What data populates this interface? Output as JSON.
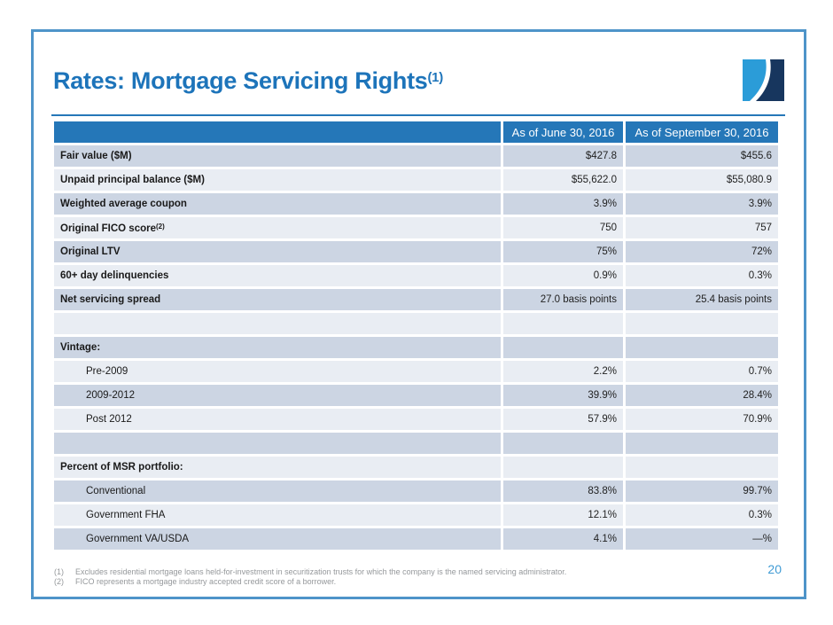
{
  "colors": {
    "title_blue": "#1d74ba",
    "header_blue": "#2577b8",
    "row_dark": "#ccd5e3",
    "row_light": "#e9edf3",
    "frame_border": "#4e94c9",
    "page_number_blue": "#3f9bd5",
    "footnote_gray": "#95989b",
    "logo_light_blue": "#2b9cd8",
    "logo_navy": "#17365e"
  },
  "slide": {
    "title": "Rates: Mortgage Servicing Rights",
    "title_superscript": "(1)",
    "page_number": "20",
    "footnotes": [
      {
        "marker": "(1)",
        "text": "Excludes residential mortgage loans held-for-investment in securitization trusts for which the company is the named servicing administrator."
      },
      {
        "marker": "(2)",
        "text": "FICO represents a mortgage industry accepted credit score of a borrower."
      }
    ]
  },
  "table": {
    "columns": [
      "",
      "As of June 30, 2016",
      "As of September 30, 2016"
    ],
    "rows": [
      {
        "type": "metric",
        "label": "Fair value ($M)",
        "sup": "",
        "jun": "$427.8",
        "sep": "$455.6"
      },
      {
        "type": "metric",
        "label": "Unpaid principal balance ($M)",
        "sup": "",
        "jun": "$55,622.0",
        "sep": "$55,080.9"
      },
      {
        "type": "metric",
        "label": "Weighted average coupon",
        "sup": "",
        "jun": "3.9%",
        "sep": "3.9%"
      },
      {
        "type": "metric",
        "label": "Original FICO score",
        "sup": "(2)",
        "jun": "750",
        "sep": "757"
      },
      {
        "type": "metric",
        "label": "Original LTV",
        "sup": "",
        "jun": "75%",
        "sep": "72%"
      },
      {
        "type": "metric",
        "label": "60+ day delinquencies",
        "sup": "",
        "jun": "0.9%",
        "sep": "0.3%"
      },
      {
        "type": "metric",
        "label": "Net servicing spread",
        "sup": "",
        "jun": "27.0 basis points",
        "sep": "25.4 basis points"
      },
      {
        "type": "empty",
        "label": "",
        "sup": "",
        "jun": "",
        "sep": ""
      },
      {
        "type": "section",
        "label": "Vintage:",
        "sup": "",
        "jun": "",
        "sep": ""
      },
      {
        "type": "sub",
        "label": "Pre-2009",
        "sup": "",
        "jun": "2.2%",
        "sep": "0.7%"
      },
      {
        "type": "sub",
        "label": "2009-2012",
        "sup": "",
        "jun": "39.9%",
        "sep": "28.4%"
      },
      {
        "type": "sub",
        "label": "Post 2012",
        "sup": "",
        "jun": "57.9%",
        "sep": "70.9%"
      },
      {
        "type": "empty",
        "label": "",
        "sup": "",
        "jun": "",
        "sep": ""
      },
      {
        "type": "section",
        "label": "Percent of MSR portfolio:",
        "sup": "",
        "jun": "",
        "sep": ""
      },
      {
        "type": "sub",
        "label": "Conventional",
        "sup": "",
        "jun": "83.8%",
        "sep": "99.7%"
      },
      {
        "type": "sub",
        "label": "Government FHA",
        "sup": "",
        "jun": "12.1%",
        "sep": "0.3%"
      },
      {
        "type": "sub",
        "label": "Government VA/USDA",
        "sup": "",
        "jun": "4.1%",
        "sep": "—%"
      }
    ]
  }
}
